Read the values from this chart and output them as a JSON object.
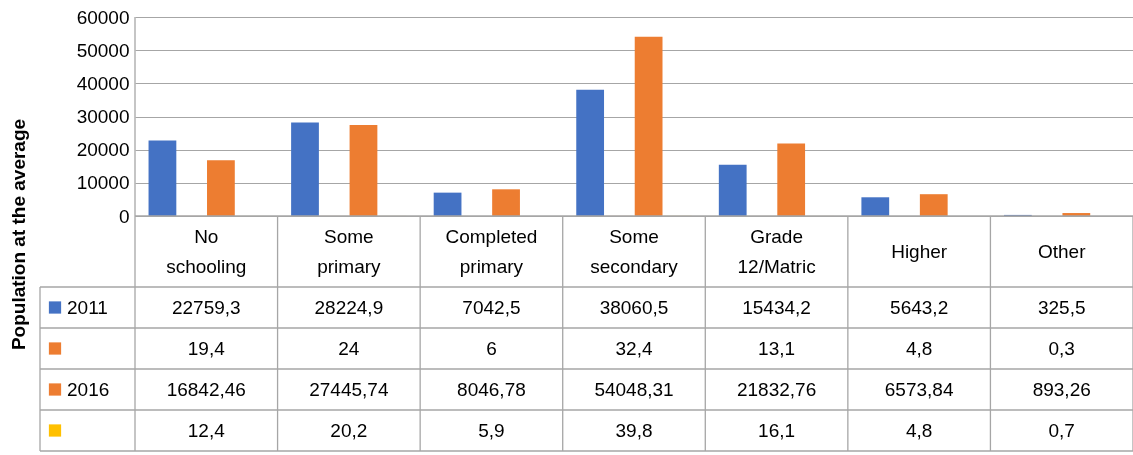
{
  "chart_data": {
    "type": "bar",
    "ylabel": "Population at the average",
    "categories": [
      "No schooling",
      "Some primary",
      "Completed primary",
      "Some secondary",
      "Grade 12/Matric",
      "Higher",
      "Other"
    ],
    "series": [
      {
        "name": "2011",
        "color": "#4472c4",
        "values": [
          22759.3,
          28224.9,
          7042.5,
          38060.5,
          15434.2,
          5643.2,
          325.5
        ],
        "value_labels": [
          "22759,3",
          "28224,9",
          "7042,5",
          "38060,5",
          "15434,2",
          "5643,2",
          "325,5"
        ]
      },
      {
        "color": "#ed7d31",
        "values": [
          19.4,
          24,
          6,
          32.4,
          13.1,
          4.8,
          0.3
        ],
        "value_labels": [
          "19,4",
          "24",
          "6",
          "32,4",
          "13,1",
          "4,8",
          "0,3"
        ]
      },
      {
        "name": "2016",
        "color": "#ed7d31",
        "values": [
          16842.46,
          27445.74,
          8046.78,
          54048.31,
          21832.76,
          6573.84,
          893.26
        ],
        "value_labels": [
          "16842,46",
          "27445,74",
          "8046,78",
          "54048,31",
          "21832,76",
          "6573,84",
          "893,26"
        ]
      },
      {
        "color": "#ffc000",
        "values": [
          12.4,
          20.2,
          5.9,
          39.8,
          16.1,
          4.8,
          0.7
        ],
        "value_labels": [
          "12,4",
          "20,2",
          "5,9",
          "39,8",
          "16,1",
          "4,8",
          "0,7"
        ]
      }
    ],
    "ylim": [
      0,
      60000
    ],
    "yticks": [
      0,
      10000,
      20000,
      30000,
      40000,
      50000,
      60000
    ],
    "grid": true,
    "legend": "left"
  }
}
